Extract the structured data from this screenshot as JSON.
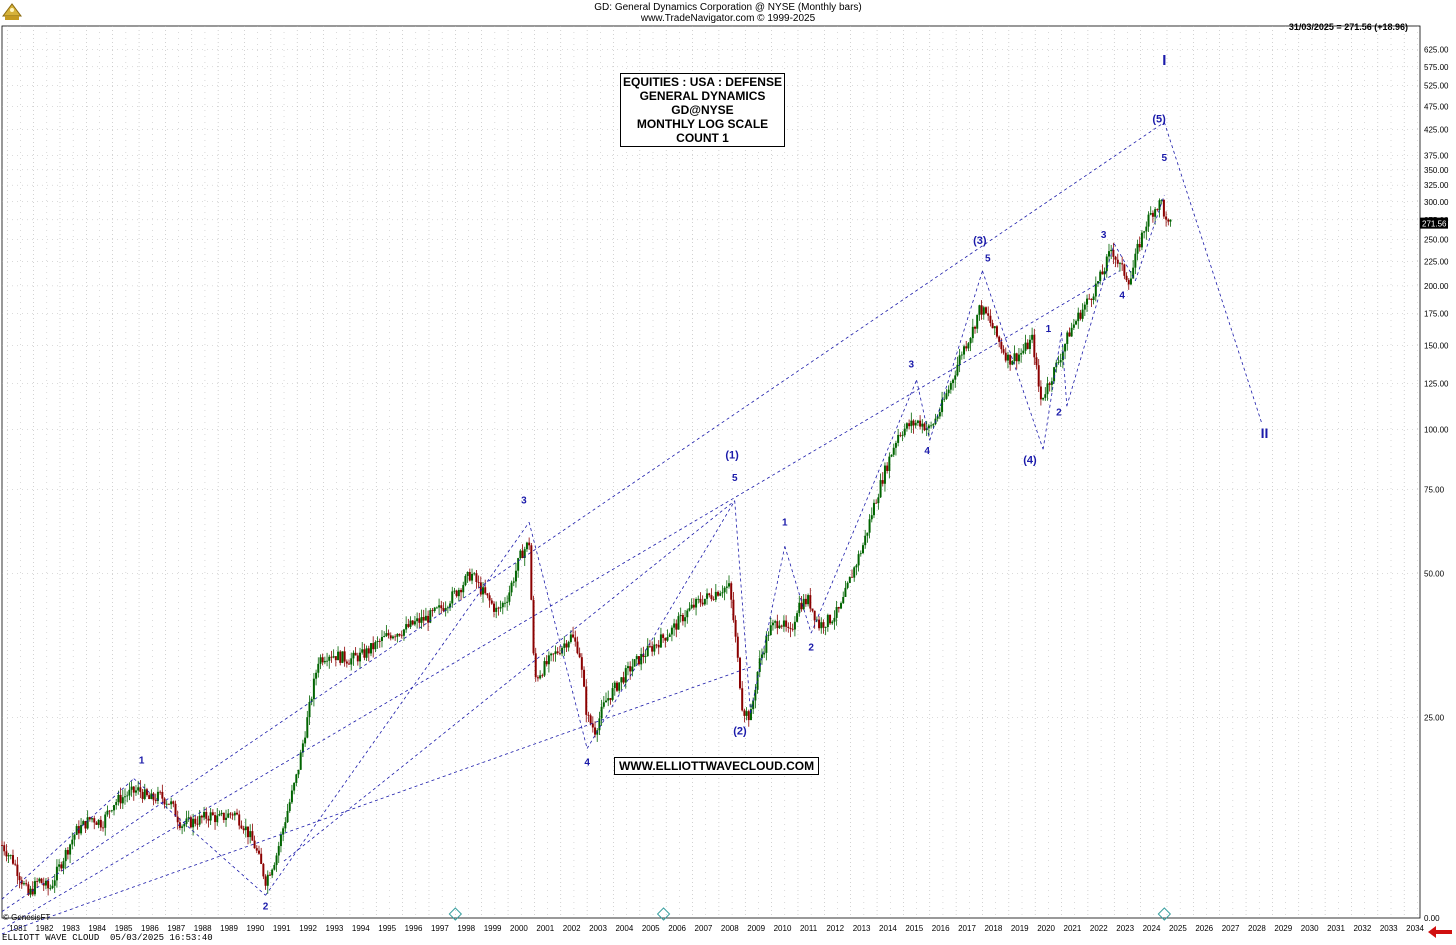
{
  "header": {
    "line1": "GD:  General Dynamics Corporation @ NYSE  (Monthly bars)",
    "line2": "www.TradeNavigator.com © 1999-2025"
  },
  "readout": "31/03/2025 = 271.56 (+18.96)",
  "last_price_label": "271.56",
  "info_box": [
    "EQUITIES : USA : DEFENSE",
    "GENERAL DYNAMICS",
    "GD@NYSE",
    "MONTHLY LOG SCALE",
    "COUNT 1"
  ],
  "site_label": "WWW.ELLIOTTWAVECLOUD.COM",
  "copyright": "© GenesisFT",
  "footer": "ELLIOTT WAVE CLOUD  05/03/2025 16:53:40",
  "colors": {
    "bull": "#006400",
    "bear": "#8b0000",
    "wave": "#1a1aaa",
    "grid": "#b4b4b4",
    "arrow": "#d01010"
  },
  "chart_data": {
    "type": "candlestick",
    "y_scale": "log",
    "ylim": [
      9.5,
      700
    ],
    "xlim": [
      1980.8,
      2034.6
    ],
    "y_ticks": [
      "625.00",
      "575.00",
      "525.00",
      "475.00",
      "425.00",
      "375.00",
      "350.00",
      "325.00",
      "300.00",
      "275.00",
      "250.00",
      "225.00",
      "200.00",
      "175.00",
      "150.00",
      "125.00",
      "100.00",
      "75.00",
      "50.00",
      "25.00"
    ],
    "y_tick_values": [
      625,
      575,
      525,
      475,
      425,
      375,
      350,
      325,
      300,
      275,
      250,
      225,
      200,
      175,
      150,
      125,
      100,
      75,
      50,
      25
    ],
    "bottom_tick": "0.00",
    "x_ticks": [
      "1981",
      "1982",
      "1983",
      "1984",
      "1985",
      "1986",
      "1987",
      "1988",
      "1989",
      "1990",
      "1991",
      "1992",
      "1993",
      "1994",
      "1995",
      "1996",
      "1997",
      "1998",
      "1999",
      "2000",
      "2001",
      "2002",
      "2003",
      "2004",
      "2005",
      "2006",
      "2007",
      "2008",
      "2009",
      "2010",
      "2011",
      "2012",
      "2013",
      "2014",
      "2015",
      "2016",
      "2017",
      "2018",
      "2019",
      "2020",
      "2021",
      "2022",
      "2023",
      "2024",
      "2025",
      "2026",
      "2027",
      "2028",
      "2029",
      "2030",
      "2031",
      "2032",
      "2033",
      "2034"
    ],
    "price_path": [
      [
        1980.8,
        13.5
      ],
      [
        1981.2,
        12.6
      ],
      [
        1981.8,
        10.6
      ],
      [
        1982.2,
        11.4
      ],
      [
        1982.6,
        10.9
      ],
      [
        1983.1,
        12.6
      ],
      [
        1983.6,
        14.4
      ],
      [
        1984.2,
        15.4
      ],
      [
        1984.6,
        15.0
      ],
      [
        1985.0,
        16.5
      ],
      [
        1985.6,
        17.3
      ],
      [
        1986.0,
        17.6
      ],
      [
        1986.4,
        16.8
      ],
      [
        1986.8,
        17.1
      ],
      [
        1987.2,
        16.5
      ],
      [
        1987.6,
        14.9
      ],
      [
        1988.2,
        15.2
      ],
      [
        1988.7,
        15.6
      ],
      [
        1989.0,
        15.3
      ],
      [
        1989.6,
        15.8
      ],
      [
        1990.0,
        14.8
      ],
      [
        1990.4,
        13.4
      ],
      [
        1990.8,
        11.4
      ],
      [
        1991.2,
        12.8
      ],
      [
        1991.6,
        15.7
      ],
      [
        1992.0,
        19.0
      ],
      [
        1992.4,
        25.0
      ],
      [
        1992.8,
        33.0
      ],
      [
        1993.2,
        34.0
      ],
      [
        1993.6,
        33.5
      ],
      [
        1994.0,
        33.0
      ],
      [
        1994.5,
        33.8
      ],
      [
        1995.0,
        35.5
      ],
      [
        1995.5,
        37.3
      ],
      [
        1996.0,
        38.0
      ],
      [
        1996.5,
        39.5
      ],
      [
        1997.0,
        40.5
      ],
      [
        1997.5,
        42.5
      ],
      [
        1998.0,
        45.5
      ],
      [
        1998.6,
        50.0
      ],
      [
        1999.0,
        46.0
      ],
      [
        1999.6,
        41.5
      ],
      [
        2000.0,
        45.0
      ],
      [
        2000.5,
        55.0
      ],
      [
        2000.8,
        58.0
      ],
      [
        2001.0,
        30.0
      ],
      [
        2001.5,
        32.5
      ],
      [
        2002.0,
        35.0
      ],
      [
        2002.4,
        37.0
      ],
      [
        2002.7,
        34.5
      ],
      [
        2003.0,
        25.0
      ],
      [
        2003.3,
        23.5
      ],
      [
        2003.7,
        27.0
      ],
      [
        2004.1,
        29.0
      ],
      [
        2004.7,
        32.0
      ],
      [
        2005.2,
        34.0
      ],
      [
        2005.7,
        36.0
      ],
      [
        2006.2,
        38.0
      ],
      [
        2006.7,
        41.0
      ],
      [
        2007.2,
        43.5
      ],
      [
        2007.7,
        45.0
      ],
      [
        2008.1,
        46.5
      ],
      [
        2008.4,
        46.8
      ],
      [
        2008.6,
        38.0
      ],
      [
        2008.9,
        26.0
      ],
      [
        2009.2,
        25.0
      ],
      [
        2009.5,
        32.0
      ],
      [
        2009.9,
        38.0
      ],
      [
        2010.3,
        40.0
      ],
      [
        2010.7,
        37.0
      ],
      [
        2011.0,
        43.0
      ],
      [
        2011.4,
        44.0
      ],
      [
        2011.8,
        39.0
      ],
      [
        2012.2,
        40.0
      ],
      [
        2012.6,
        42.0
      ],
      [
        2013.0,
        49.0
      ],
      [
        2013.5,
        58.0
      ],
      [
        2013.9,
        70.0
      ],
      [
        2014.3,
        82.0
      ],
      [
        2014.8,
        98.0
      ],
      [
        2015.2,
        102.0
      ],
      [
        2015.6,
        104.0
      ],
      [
        2016.0,
        100.0
      ],
      [
        2016.4,
        110.0
      ],
      [
        2016.8,
        125.0
      ],
      [
        2017.2,
        145.0
      ],
      [
        2017.6,
        160.0
      ],
      [
        2017.9,
        180.0
      ],
      [
        2018.2,
        172.0
      ],
      [
        2018.7,
        150.0
      ],
      [
        2019.0,
        140.0
      ],
      [
        2019.5,
        145.0
      ],
      [
        2019.9,
        155.0
      ],
      [
        2020.2,
        115.0
      ],
      [
        2020.5,
        125.0
      ],
      [
        2020.9,
        140.0
      ],
      [
        2021.3,
        160.0
      ],
      [
        2021.7,
        175.0
      ],
      [
        2022.1,
        190.0
      ],
      [
        2022.6,
        215.0
      ],
      [
        2022.9,
        240.0
      ],
      [
        2023.2,
        220.0
      ],
      [
        2023.6,
        205.0
      ],
      [
        2023.9,
        240.0
      ],
      [
        2024.2,
        270.0
      ],
      [
        2024.5,
        290.0
      ],
      [
        2024.8,
        300.0
      ],
      [
        2025.0,
        265.0
      ],
      [
        2025.2,
        270.0
      ]
    ],
    "wave_lines": [
      [
        [
          1980.8,
          10.4
        ],
        [
          1985.8,
          18.6
        ]
      ],
      [
        [
          1985.8,
          18.6
        ],
        [
          1990.8,
          10.6
        ]
      ],
      [
        [
          1990.8,
          10.6
        ],
        [
          2000.8,
          64.0
        ]
      ],
      [
        [
          2000.8,
          64.0
        ],
        [
          2003.0,
          21.5
        ]
      ],
      [
        [
          2003.0,
          21.5
        ],
        [
          2008.6,
          71.0
        ]
      ],
      [
        [
          2008.6,
          71.0
        ],
        [
          2009.2,
          25.5
        ]
      ],
      [
        [
          2009.2,
          25.5
        ],
        [
          2010.5,
          57.0
        ]
      ],
      [
        [
          2010.5,
          57.0
        ],
        [
          2011.5,
          37.5
        ]
      ],
      [
        [
          2011.5,
          37.5
        ],
        [
          2015.5,
          127.0
        ]
      ],
      [
        [
          2015.5,
          127.0
        ],
        [
          2016.0,
          95.0
        ]
      ],
      [
        [
          2016.0,
          95.0
        ],
        [
          2018.0,
          215.0
        ]
      ],
      [
        [
          2018.0,
          215.0
        ],
        [
          2020.3,
          91.0
        ]
      ],
      [
        [
          2020.3,
          91.0
        ],
        [
          2021.0,
          160.0
        ]
      ],
      [
        [
          2021.0,
          160.0
        ],
        [
          2021.2,
          112.0
        ]
      ],
      [
        [
          2021.2,
          112.0
        ],
        [
          2023.0,
          245.0
        ]
      ],
      [
        [
          2023.0,
          245.0
        ],
        [
          2023.8,
          205.0
        ]
      ],
      [
        [
          2023.8,
          205.0
        ],
        [
          2024.9,
          310.0
        ]
      ],
      [
        [
          2024.9,
          440.0
        ],
        [
          2028.6,
          103.0
        ]
      ],
      [
        [
          1980.8,
          8.8
        ],
        [
          2009.3,
          32.0
        ]
      ],
      [
        [
          1980.8,
          9.0
        ],
        [
          2023.2,
          215.0
        ]
      ],
      [
        [
          1980.8,
          9.8
        ],
        [
          2024.9,
          440.0
        ]
      ],
      [
        [
          1991.5,
          12.5
        ],
        [
          2008.6,
          71.0
        ]
      ]
    ],
    "wave_labels": [
      {
        "text": "1",
        "x": 1986.1,
        "y": 20.0,
        "size": 10
      },
      {
        "text": "2",
        "x": 1990.8,
        "y": 9.9,
        "size": 10
      },
      {
        "text": "3",
        "x": 2000.6,
        "y": 70.0,
        "size": 10
      },
      {
        "text": "4",
        "x": 2003.0,
        "y": 19.8,
        "size": 10
      },
      {
        "text": "(1)",
        "x": 2008.5,
        "y": 87.0,
        "size": 11
      },
      {
        "text": "5",
        "x": 2008.6,
        "y": 78.0,
        "size": 10
      },
      {
        "text": "(2)",
        "x": 2008.8,
        "y": 23.0,
        "size": 11
      },
      {
        "text": "1",
        "x": 2010.5,
        "y": 63.0,
        "size": 10
      },
      {
        "text": "2",
        "x": 2011.5,
        "y": 34.5,
        "size": 10
      },
      {
        "text": "3",
        "x": 2015.3,
        "y": 135.0,
        "size": 10
      },
      {
        "text": "4",
        "x": 2015.9,
        "y": 89.0,
        "size": 10
      },
      {
        "text": "(3)",
        "x": 2017.9,
        "y": 245.0,
        "size": 11
      },
      {
        "text": "5",
        "x": 2018.2,
        "y": 225.0,
        "size": 10
      },
      {
        "text": "(4)",
        "x": 2019.8,
        "y": 85.0,
        "size": 11
      },
      {
        "text": "1",
        "x": 2020.5,
        "y": 160.0,
        "size": 10
      },
      {
        "text": "2",
        "x": 2020.9,
        "y": 107.0,
        "size": 10
      },
      {
        "text": "3",
        "x": 2022.6,
        "y": 252.0,
        "size": 10
      },
      {
        "text": "4",
        "x": 2023.3,
        "y": 188.0,
        "size": 10
      },
      {
        "text": "(5)",
        "x": 2024.7,
        "y": 440.0,
        "size": 11
      },
      {
        "text": "5",
        "x": 2024.9,
        "y": 365.0,
        "size": 10
      },
      {
        "text": "I",
        "x": 2024.9,
        "y": 580.0,
        "size": 15
      },
      {
        "text": "II",
        "x": 2028.7,
        "y": 96.0,
        "size": 14
      }
    ]
  }
}
